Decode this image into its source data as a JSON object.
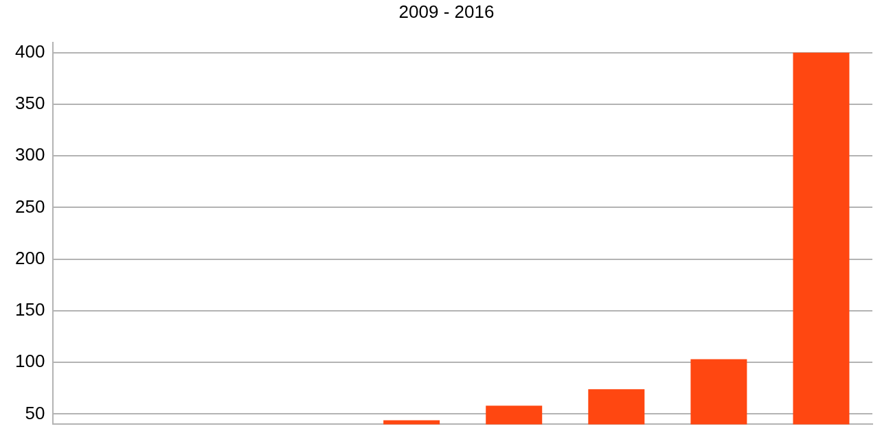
{
  "chart_data": {
    "type": "bar",
    "title": "2009 - 2016",
    "categories": [
      null,
      null,
      null,
      null,
      null,
      null,
      null,
      null
    ],
    "values": [
      null,
      null,
      null,
      44,
      58,
      74,
      103,
      400
    ],
    "color": "#ff4711",
    "ylim": [
      40,
      410
    ],
    "yticks": [
      50,
      100,
      150,
      200,
      250,
      300,
      350,
      400
    ],
    "grid": "y",
    "tick_labels": "y"
  }
}
